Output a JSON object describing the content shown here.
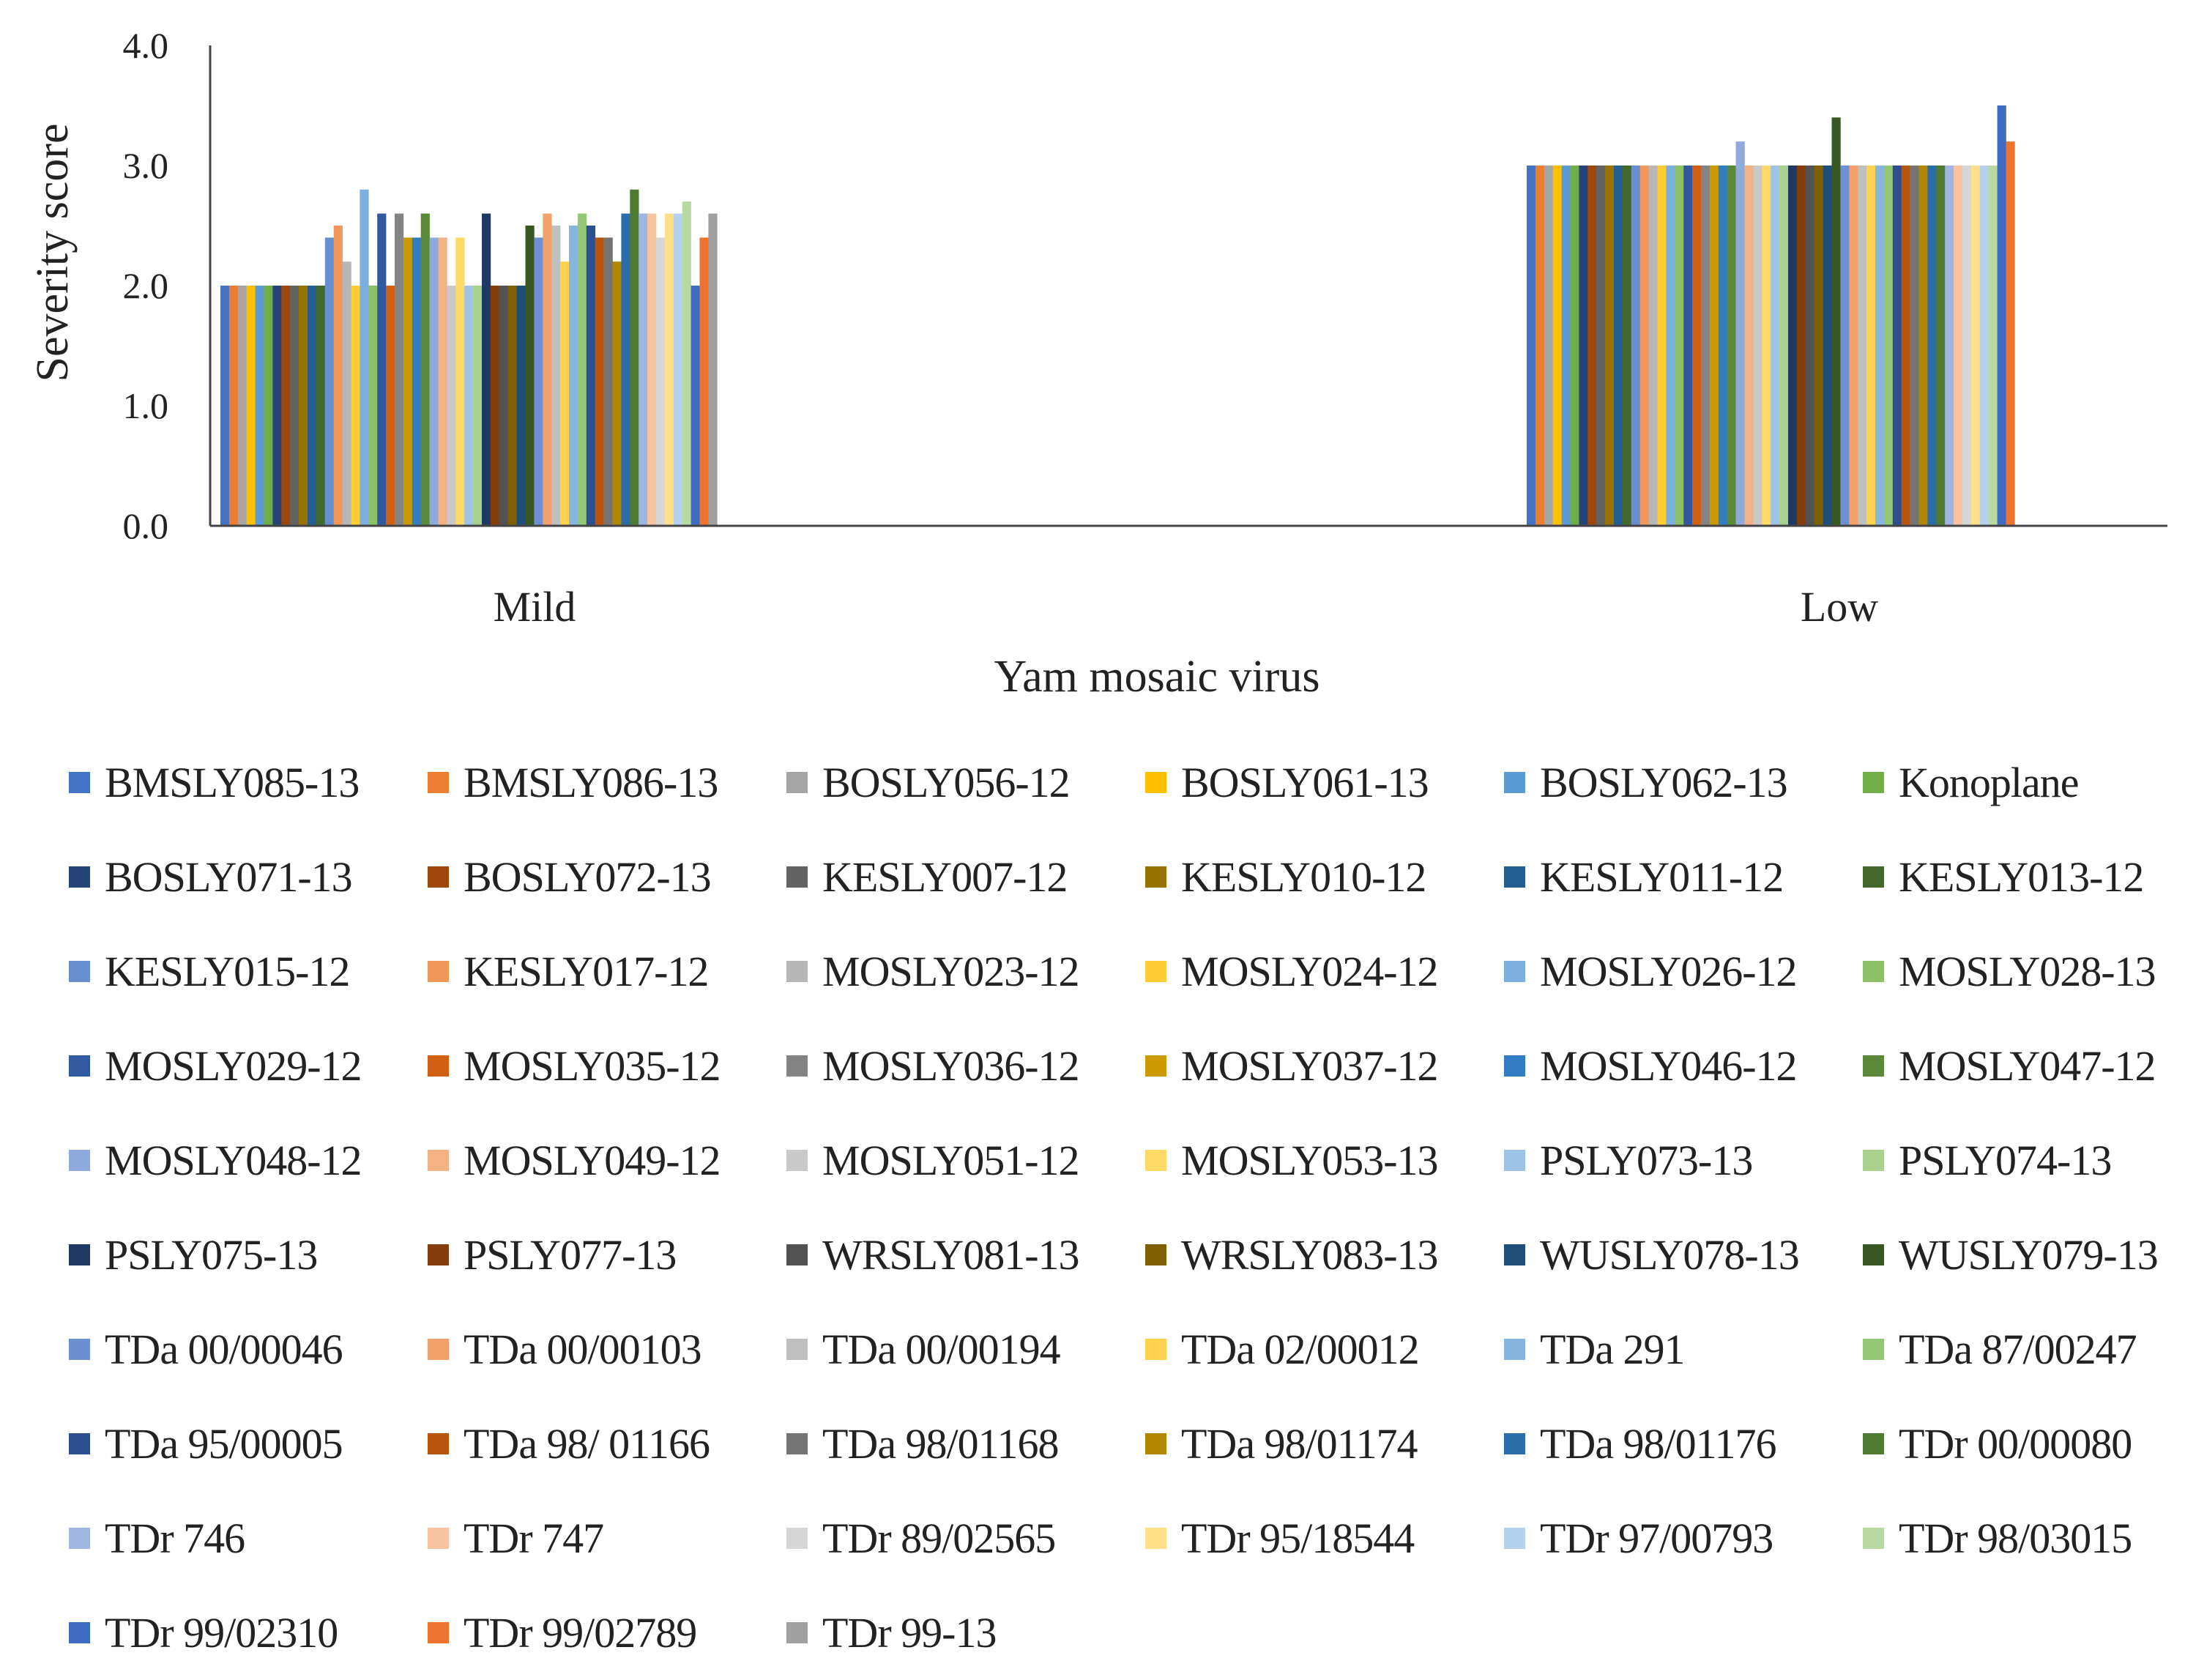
{
  "chart_data": {
    "type": "bar",
    "title": "",
    "xlabel": "Yam mosaic virus",
    "ylabel": "Severity score",
    "ylim": [
      0.0,
      4.0
    ],
    "yticks": [
      "0.0",
      "1.0",
      "2.0",
      "3.0",
      "4.0"
    ],
    "grid": false,
    "legend_position": "bottom",
    "categories": [
      "Mild",
      "Low"
    ],
    "series": [
      {
        "name": "BMSLY085-13",
        "color": "#4472C4",
        "values": [
          2.0,
          3.0
        ]
      },
      {
        "name": "BMSLY086-13",
        "color": "#ED7D31",
        "values": [
          2.0,
          3.0
        ]
      },
      {
        "name": "BOSLY056-12",
        "color": "#A5A5A5",
        "values": [
          2.0,
          3.0
        ]
      },
      {
        "name": "BOSLY061-13",
        "color": "#FFC000",
        "values": [
          2.0,
          3.0
        ]
      },
      {
        "name": "BOSLY062-13",
        "color": "#5B9BD5",
        "values": [
          2.0,
          3.0
        ]
      },
      {
        "name": "Konoplane",
        "color": "#70AD47",
        "values": [
          2.0,
          3.0
        ]
      },
      {
        "name": "BOSLY071-13",
        "color": "#264478",
        "values": [
          2.0,
          3.0
        ]
      },
      {
        "name": "BOSLY072-13",
        "color": "#9E480E",
        "values": [
          2.0,
          3.0
        ]
      },
      {
        "name": "KESLY007-12",
        "color": "#636363",
        "values": [
          2.0,
          3.0
        ]
      },
      {
        "name": "KESLY010-12",
        "color": "#997300",
        "values": [
          2.0,
          3.0
        ]
      },
      {
        "name": "KESLY011-12",
        "color": "#255E91",
        "values": [
          2.0,
          3.0
        ]
      },
      {
        "name": "KESLY013-12",
        "color": "#43682B",
        "values": [
          2.0,
          3.0
        ]
      },
      {
        "name": "KESLY015-12",
        "color": "#698ED0",
        "values": [
          2.4,
          3.0
        ]
      },
      {
        "name": "KESLY017-12",
        "color": "#F1975A",
        "values": [
          2.5,
          3.0
        ]
      },
      {
        "name": "MOSLY023-12",
        "color": "#B7B7B7",
        "values": [
          2.2,
          3.0
        ]
      },
      {
        "name": "MOSLY024-12",
        "color": "#FFCD33",
        "values": [
          2.0,
          3.0
        ]
      },
      {
        "name": "MOSLY026-12",
        "color": "#7CAFDD",
        "values": [
          2.8,
          3.0
        ]
      },
      {
        "name": "MOSLY028-13",
        "color": "#8CC168",
        "values": [
          2.0,
          3.0
        ]
      },
      {
        "name": "MOSLY029-12",
        "color": "#335AA1",
        "values": [
          2.6,
          3.0
        ]
      },
      {
        "name": "MOSLY035-12",
        "color": "#D26012",
        "values": [
          2.0,
          3.0
        ]
      },
      {
        "name": "MOSLY036-12",
        "color": "#848484",
        "values": [
          2.6,
          3.0
        ]
      },
      {
        "name": "MOSLY037-12",
        "color": "#CC9A00",
        "values": [
          2.4,
          3.0
        ]
      },
      {
        "name": "MOSLY046-12",
        "color": "#327DC2",
        "values": [
          2.4,
          3.0
        ]
      },
      {
        "name": "MOSLY047-12",
        "color": "#5A8A39",
        "values": [
          2.6,
          3.0
        ]
      },
      {
        "name": "MOSLY048-12",
        "color": "#8FAADC",
        "values": [
          2.4,
          3.2
        ]
      },
      {
        "name": "MOSLY049-12",
        "color": "#F4B183",
        "values": [
          2.4,
          3.0
        ]
      },
      {
        "name": "MOSLY051-12",
        "color": "#C9C9C9",
        "values": [
          2.0,
          3.0
        ]
      },
      {
        "name": "MOSLY053-13",
        "color": "#FFD966",
        "values": [
          2.4,
          3.0
        ]
      },
      {
        "name": "PSLY073-13",
        "color": "#9DC3E6",
        "values": [
          2.0,
          3.0
        ]
      },
      {
        "name": "PSLY074-13",
        "color": "#A9D18E",
        "values": [
          2.0,
          3.0
        ]
      },
      {
        "name": "PSLY075-13",
        "color": "#1F3864",
        "values": [
          2.6,
          3.0
        ]
      },
      {
        "name": "PSLY077-13",
        "color": "#843C0C",
        "values": [
          2.0,
          3.0
        ]
      },
      {
        "name": "WRSLY081-13",
        "color": "#525252",
        "values": [
          2.0,
          3.0
        ]
      },
      {
        "name": "WRSLY083-13",
        "color": "#7F6000",
        "values": [
          2.0,
          3.0
        ]
      },
      {
        "name": "WUSLY078-13",
        "color": "#1F4E79",
        "values": [
          2.0,
          3.0
        ]
      },
      {
        "name": "WUSLY079-13",
        "color": "#385723",
        "values": [
          2.5,
          3.4
        ]
      },
      {
        "name": "TDa 00/00046",
        "color": "#6F8FD3",
        "values": [
          2.4,
          3.0
        ]
      },
      {
        "name": "TDa 00/00103",
        "color": "#F4A06A",
        "values": [
          2.6,
          3.0
        ]
      },
      {
        "name": "TDa 00/00194",
        "color": "#BFBFBF",
        "values": [
          2.5,
          3.0
        ]
      },
      {
        "name": "TDa 02/00012",
        "color": "#FFD24D",
        "values": [
          2.2,
          3.0
        ]
      },
      {
        "name": "TDa 291",
        "color": "#86B6E0",
        "values": [
          2.5,
          3.0
        ]
      },
      {
        "name": "TDa 87/00247",
        "color": "#94C775",
        "values": [
          2.6,
          3.0
        ]
      },
      {
        "name": "TDa 95/00005",
        "color": "#2E4F8F",
        "values": [
          2.5,
          3.0
        ]
      },
      {
        "name": "TDa 98/ 01166",
        "color": "#B9540F",
        "values": [
          2.4,
          3.0
        ]
      },
      {
        "name": "TDa 98/01168",
        "color": "#747474",
        "values": [
          2.4,
          3.0
        ]
      },
      {
        "name": "TDa 98/01174",
        "color": "#B38600",
        "values": [
          2.2,
          3.0
        ]
      },
      {
        "name": "TDa 98/01176",
        "color": "#2A6DAA",
        "values": [
          2.6,
          3.0
        ]
      },
      {
        "name": "TDr 00/00080",
        "color": "#4E7A32",
        "values": [
          2.8,
          3.0
        ]
      },
      {
        "name": "TDr 746",
        "color": "#A0B6E2",
        "values": [
          2.6,
          3.0
        ]
      },
      {
        "name": "TDr 747",
        "color": "#F8C3A0",
        "values": [
          2.6,
          3.0
        ]
      },
      {
        "name": "TDr 89/02565",
        "color": "#D6D6D6",
        "values": [
          2.4,
          3.0
        ]
      },
      {
        "name": "TDr 95/18544",
        "color": "#FFE08A",
        "values": [
          2.6,
          3.0
        ]
      },
      {
        "name": "TDr 97/00793",
        "color": "#B4D2EE",
        "values": [
          2.6,
          3.0
        ]
      },
      {
        "name": "TDr 98/03015",
        "color": "#B8DAA2",
        "values": [
          2.7,
          3.0
        ]
      },
      {
        "name": "TDr 99/02310",
        "color": "#3F6BC2",
        "values": [
          2.0,
          3.5
        ]
      },
      {
        "name": "TDr 99/02789",
        "color": "#EC7430",
        "values": [
          2.4,
          3.2
        ]
      },
      {
        "name": "TDr 99-13",
        "color": "#A0A0A0",
        "values": [
          2.6,
          0.0
        ]
      }
    ]
  }
}
